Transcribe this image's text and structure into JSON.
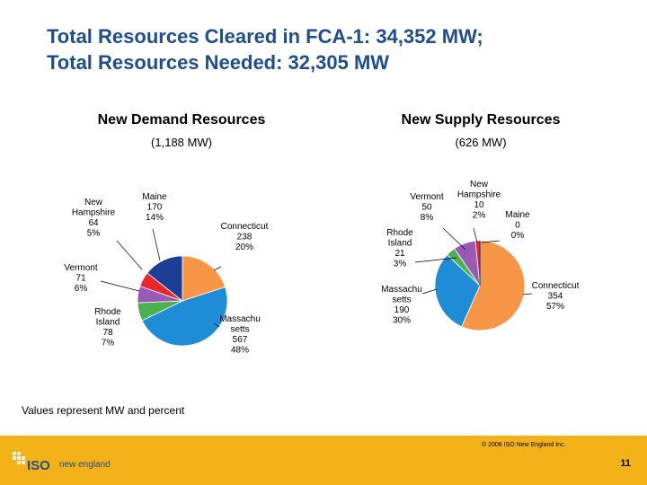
{
  "slide": {
    "title_line1": "Total Resources Cleared in FCA-1: 34,352 MW;",
    "title_line2": "Total Resources Needed: 32,305 MW",
    "note": "Values represent MW and percent",
    "copyright": "© 2008 ISO New England Inc.",
    "page_number": "11",
    "logo_iso": "ISO",
    "logo_ne": "new england"
  },
  "chart_data": [
    {
      "type": "pie",
      "title": "New Demand Resources",
      "subtitle": "(1,188 MW)",
      "slices": [
        {
          "name": "Connecticut",
          "value": 238,
          "pct": "20%",
          "color": "#f79646"
        },
        {
          "name": "Massachusetts",
          "value": 567,
          "pct": "48%",
          "color": "#1f8dd6"
        },
        {
          "name": "Rhode Island",
          "value": 78,
          "pct": "7%",
          "color": "#4caf50"
        },
        {
          "name": "Vermont",
          "value": 71,
          "pct": "6%",
          "color": "#9b59b6"
        },
        {
          "name": "New Hampshire",
          "value": 64,
          "pct": "5%",
          "color": "#e8262c"
        },
        {
          "name": "Maine",
          "value": 170,
          "pct": "14%",
          "color": "#1c3f95"
        }
      ],
      "labels": [
        {
          "lines": [
            "Connecticut",
            "238",
            "20%"
          ]
        },
        {
          "lines": [
            "Massachu",
            "setts",
            "567",
            "48%"
          ]
        },
        {
          "lines": [
            "Rhode",
            "Island",
            "78",
            "7%"
          ]
        },
        {
          "lines": [
            "Vermont",
            "71",
            "6%"
          ]
        },
        {
          "lines": [
            "New",
            "Hampshire",
            "64",
            "5%"
          ]
        },
        {
          "lines": [
            "Maine",
            "170",
            "14%"
          ]
        }
      ]
    },
    {
      "type": "pie",
      "title": "New Supply Resources",
      "subtitle": "(626 MW)",
      "slices": [
        {
          "name": "Connecticut",
          "value": 354,
          "pct": "57%",
          "color": "#f79646"
        },
        {
          "name": "Massachusetts",
          "value": 190,
          "pct": "30%",
          "color": "#1f8dd6"
        },
        {
          "name": "Rhode Island",
          "value": 21,
          "pct": "3%",
          "color": "#4caf50"
        },
        {
          "name": "Vermont",
          "value": 50,
          "pct": "8%",
          "color": "#9b59b6"
        },
        {
          "name": "New Hampshire",
          "value": 10,
          "pct": "2%",
          "color": "#e8262c"
        },
        {
          "name": "Maine",
          "value": 0,
          "pct": "0%",
          "color": "#1c3f95"
        }
      ],
      "labels": [
        {
          "lines": [
            "Connecticut",
            "354",
            "57%"
          ]
        },
        {
          "lines": [
            "Massachu",
            "setts",
            "190",
            "30%"
          ]
        },
        {
          "lines": [
            "Rhode",
            "Island",
            "21",
            "3%"
          ]
        },
        {
          "lines": [
            "Vermont",
            "50",
            "8%"
          ]
        },
        {
          "lines": [
            "New",
            "Hampshire",
            "10",
            "2%"
          ]
        },
        {
          "lines": [
            "Maine",
            "0",
            "0%"
          ]
        }
      ]
    }
  ]
}
